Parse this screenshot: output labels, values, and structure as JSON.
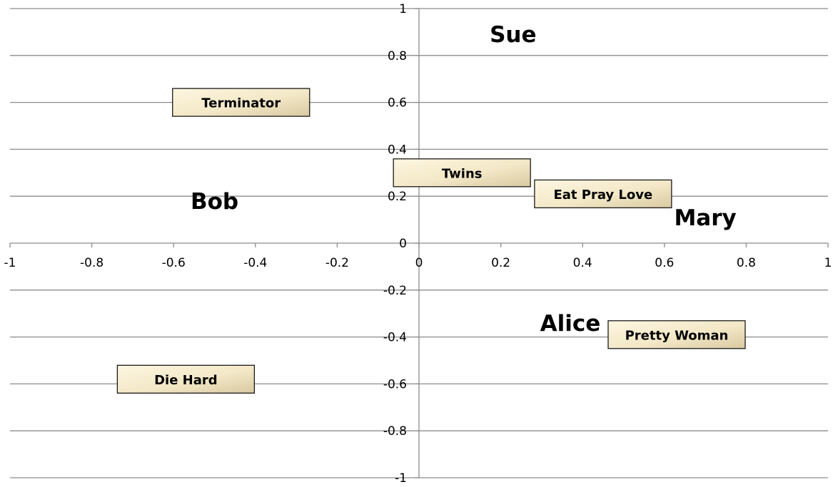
{
  "chart_data": {
    "type": "scatter",
    "xlim": [
      -1,
      1
    ],
    "ylim": [
      -1,
      1
    ],
    "x_ticks": [
      -1,
      -0.8,
      -0.6,
      -0.4,
      -0.2,
      0,
      0.2,
      0.4,
      0.6,
      0.8,
      1
    ],
    "y_ticks": [
      1,
      0.8,
      0.6,
      0.4,
      0.2,
      0,
      -0.2,
      -0.4,
      -0.6,
      -0.8,
      -1
    ],
    "x_tick_labels": [
      "-1",
      "-0.8",
      "-0.6",
      "-0.4",
      "-0.2",
      "0",
      "0.2",
      "0.4",
      "0.6",
      "0.8",
      "1"
    ],
    "y_tick_labels": [
      "1",
      "0.8",
      "0.6",
      "0.4",
      "0.2",
      "0",
      "-0.2",
      "-0.4",
      "-0.6",
      "-0.8",
      "-1"
    ],
    "grid": "horizontal",
    "series": [
      {
        "points": [
          {
            "label": "Sue",
            "x": 0.23,
            "y": 0.89
          },
          {
            "label": "Bob",
            "x": -0.5,
            "y": 0.18
          },
          {
            "label": "Mary",
            "x": 0.7,
            "y": 0.11
          },
          {
            "label": "Alice",
            "x": 0.37,
            "y": -0.34
          }
        ]
      },
      {
        "points": [
          {
            "label": "Terminator",
            "x": -0.435,
            "y": 0.6
          },
          {
            "label": "Twins",
            "x": 0.105,
            "y": 0.3
          },
          {
            "label": "Eat Pray Love",
            "x": 0.45,
            "y": 0.21
          },
          {
            "label": "Pretty Woman",
            "x": 0.63,
            "y": -0.39
          },
          {
            "label": "Die Hard",
            "x": -0.57,
            "y": -0.58
          }
        ]
      }
    ],
    "colors": {
      "box_light": "#fdf6e1",
      "box_dark": "#d8c9a1",
      "grid": "#8c8c8c"
    }
  }
}
